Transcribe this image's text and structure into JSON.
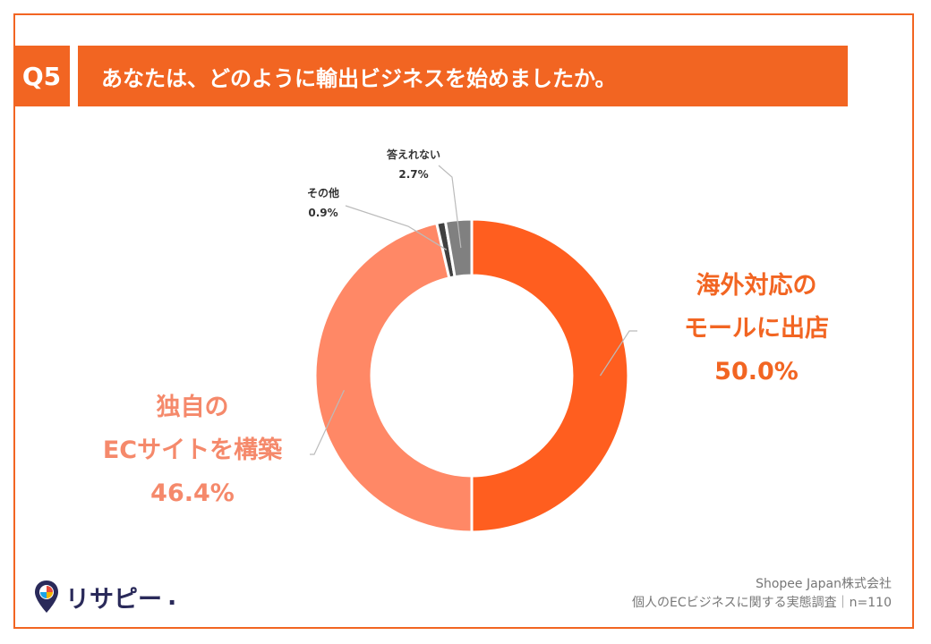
{
  "header": {
    "badge": "Q5",
    "question": "あなたは、どのように輸出ビジネスを始めましたか。"
  },
  "chart_data": {
    "type": "pie",
    "donut": true,
    "slices": [
      {
        "label_lines": [
          "海外対応の",
          "モールに出店"
        ],
        "value": 50.0,
        "value_text": "50.0%",
        "color": "#ff5e1f"
      },
      {
        "label_lines": [
          "独自の",
          "ECサイトを構築"
        ],
        "value": 46.4,
        "value_text": "46.4%",
        "color": "#ff8866"
      },
      {
        "label_lines": [
          "その他"
        ],
        "value": 0.9,
        "value_text": "0.9%",
        "color": "#404040"
      },
      {
        "label_lines": [
          "答えれない"
        ],
        "value": 2.7,
        "value_text": "2.7%",
        "color": "#808080"
      }
    ],
    "start_angle_deg": 0,
    "direction": "clockwise"
  },
  "footer": {
    "source_line1": "Shopee Japan株式会社",
    "source_line2": "個人のECビジネスに関する実態調査｜n=110",
    "logo_text": "リサピー",
    "logo_dot": "."
  },
  "colors": {
    "accent": "#f26522",
    "leader": "#bbbbbb"
  }
}
